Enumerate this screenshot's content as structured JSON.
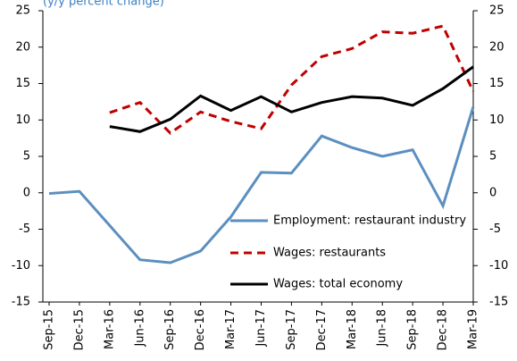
{
  "chart_data": {
    "type": "line",
    "subtitle": "(y/y percent change)",
    "categories": [
      "Sep-15",
      "Dec-15",
      "Mar-16",
      "Jun-16",
      "Sep-16",
      "Dec-16",
      "Mar-17",
      "Jun-17",
      "Sep-17",
      "Dec-17",
      "Mar-18",
      "Jun-18",
      "Sep-18",
      "Dec-18",
      "Mar-19"
    ],
    "series": [
      {
        "name": "Employment: restaurant industry",
        "color": "#5b8fbf",
        "dash": "solid",
        "values": [
          -0.1,
          0.2,
          -4.5,
          -9.2,
          -9.6,
          -8.0,
          -3.3,
          2.8,
          2.7,
          7.8,
          6.2,
          5.0,
          5.9,
          -1.8,
          11.8
        ]
      },
      {
        "name": "Wages: restaurants",
        "color": "#c00000",
        "dash": "dashed",
        "values": [
          null,
          null,
          11.0,
          12.4,
          8.2,
          11.1,
          9.8,
          8.8,
          14.8,
          18.7,
          19.8,
          22.1,
          21.9,
          22.9,
          13.9
        ]
      },
      {
        "name": "Wages: total economy",
        "color": "#000000",
        "dash": "solid",
        "values": [
          null,
          null,
          9.1,
          8.4,
          10.1,
          13.3,
          11.3,
          13.2,
          11.1,
          12.4,
          13.2,
          13.0,
          12.0,
          14.3,
          17.3
        ]
      }
    ],
    "ylim": [
      -15,
      25
    ],
    "yticks": [
      -15,
      -10,
      -5,
      0,
      5,
      10,
      15,
      20,
      25
    ],
    "y2lim": [
      -15,
      25
    ],
    "y2ticks": [
      -15,
      -10,
      -5,
      0,
      5,
      10,
      15,
      20,
      25
    ],
    "grid": false,
    "legend": "lower-right"
  }
}
